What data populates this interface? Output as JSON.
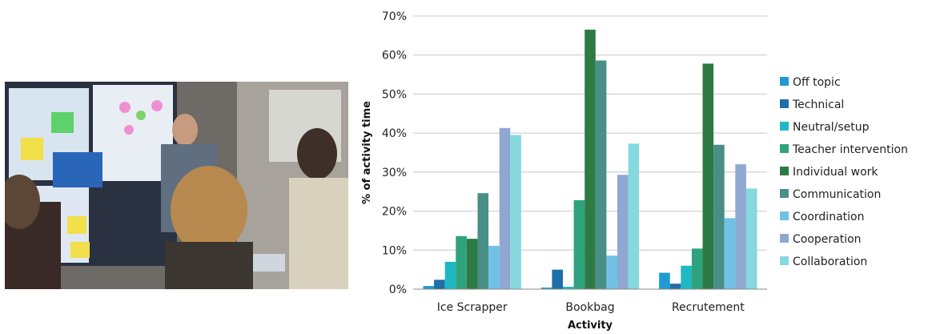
{
  "photo": {
    "description_icon": "classroom-photo-icon"
  },
  "chart_data": {
    "type": "bar",
    "title": "",
    "xlabel": "Activity",
    "ylabel": "% of activity time",
    "ylim": [
      0,
      70
    ],
    "yticks": [
      "0%",
      "10%",
      "20%",
      "30%",
      "40%",
      "50%",
      "60%",
      "70%"
    ],
    "grid": true,
    "legend_position": "right",
    "categories": [
      "Ice Scrapper",
      "Bookbag",
      "Recrutement"
    ],
    "series": [
      {
        "name": "Off topic",
        "color": "#1f9ad6",
        "values": [
          0.8,
          0.4,
          4.2
        ]
      },
      {
        "name": "Technical",
        "color": "#1f6fa8",
        "values": [
          2.4,
          5.0,
          1.4
        ]
      },
      {
        "name": "Neutral/setup",
        "color": "#1fb8c4",
        "values": [
          7.0,
          0.6,
          6.0
        ]
      },
      {
        "name": "Teacher intervention",
        "color": "#2ea37e",
        "values": [
          13.6,
          22.8,
          10.4
        ]
      },
      {
        "name": "Individual work",
        "color": "#2d7a45",
        "values": [
          12.9,
          66.5,
          57.8
        ]
      },
      {
        "name": "Communication",
        "color": "#4a8f87",
        "values": [
          24.6,
          58.6,
          37.0
        ]
      },
      {
        "name": "Coordination",
        "color": "#6fc1e6",
        "values": [
          11.1,
          8.6,
          18.2
        ]
      },
      {
        "name": "Cooperation",
        "color": "#8fa8d2",
        "values": [
          41.3,
          29.3,
          32.0
        ]
      },
      {
        "name": "Collaboration",
        "color": "#86d8df",
        "values": [
          39.5,
          37.3,
          25.8
        ]
      }
    ]
  }
}
